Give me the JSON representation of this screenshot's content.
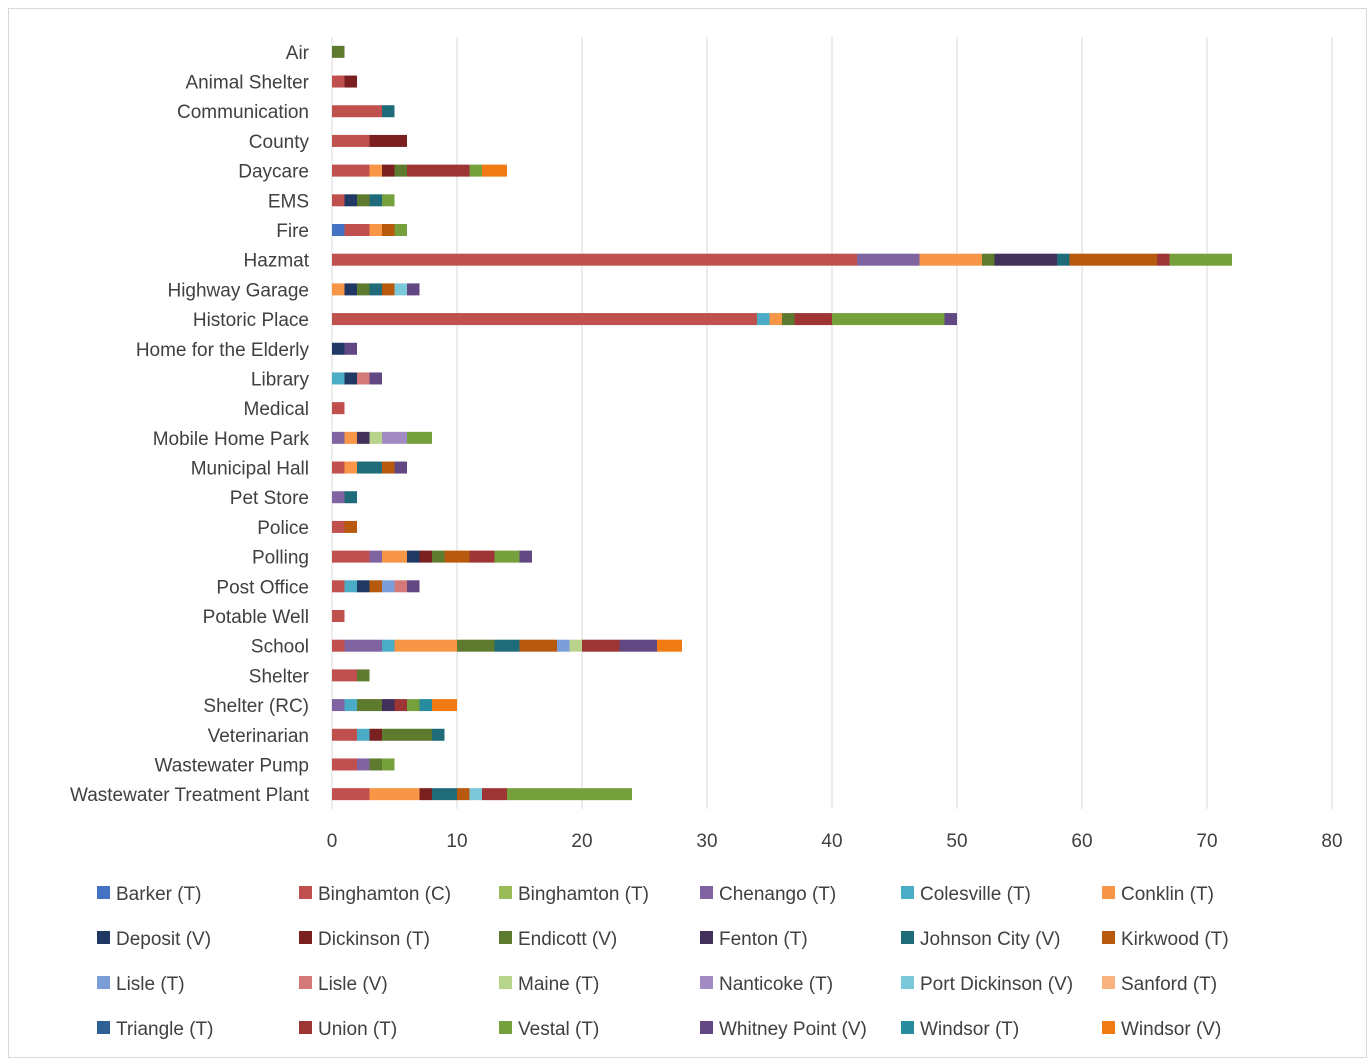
{
  "chart_data": {
    "type": "bar",
    "orientation": "horizontal",
    "stacked": true,
    "title": "",
    "xlabel": "",
    "ylabel": "",
    "xlim": [
      0,
      80
    ],
    "x_ticks": [
      "0",
      "10",
      "20",
      "30",
      "40",
      "50",
      "60",
      "70",
      "80"
    ],
    "grid": "vertical",
    "legend_position": "bottom",
    "categories": [
      "Air",
      "Animal Shelter",
      "Communication",
      "County",
      "Daycare",
      "EMS",
      "Fire",
      "Hazmat",
      "Highway Garage",
      "Historic Place",
      "Home for the Elderly",
      "Library",
      "Medical",
      "Mobile Home Park",
      "Municipal Hall",
      "Pet Store",
      "Police",
      "Polling",
      "Post Office",
      "Potable Well",
      "School",
      "Shelter",
      "Shelter (RC)",
      "Veterinarian",
      "Wastewater Pump",
      "Wastewater Treatment Plant"
    ],
    "series": [
      {
        "name": "Barker (T)",
        "color": "#4472C4",
        "values": [
          0,
          0,
          0,
          0,
          0,
          0,
          1,
          0,
          0,
          0,
          0,
          0,
          0,
          0,
          0,
          0,
          0,
          0,
          0,
          0,
          0,
          0,
          0,
          0,
          0,
          0
        ]
      },
      {
        "name": "Binghamton (C)",
        "color": "#C0504D",
        "values": [
          0,
          1,
          4,
          3,
          3,
          1,
          2,
          42,
          0,
          34,
          0,
          0,
          1,
          0,
          1,
          0,
          1,
          3,
          1,
          1,
          1,
          2,
          0,
          2,
          2,
          3
        ]
      },
      {
        "name": "Binghamton (T)",
        "color": "#9BBB59",
        "values": [
          0,
          0,
          0,
          0,
          0,
          0,
          0,
          0,
          0,
          0,
          0,
          0,
          0,
          0,
          0,
          0,
          0,
          0,
          0,
          0,
          0,
          0,
          0,
          0,
          0,
          0
        ]
      },
      {
        "name": "Chenango (T)",
        "color": "#8064A2",
        "values": [
          0,
          0,
          0,
          0,
          0,
          0,
          0,
          5,
          0,
          0,
          0,
          0,
          0,
          1,
          0,
          1,
          0,
          1,
          0,
          0,
          3,
          0,
          1,
          0,
          1,
          0
        ]
      },
      {
        "name": "Colesville (T)",
        "color": "#4BACC6",
        "values": [
          0,
          0,
          0,
          0,
          0,
          0,
          0,
          0,
          0,
          1,
          0,
          1,
          0,
          0,
          0,
          0,
          0,
          0,
          1,
          0,
          1,
          0,
          1,
          1,
          0,
          0
        ]
      },
      {
        "name": "Conklin (T)",
        "color": "#F79646",
        "values": [
          0,
          0,
          0,
          0,
          1,
          0,
          1,
          5,
          1,
          1,
          0,
          0,
          0,
          1,
          1,
          0,
          0,
          2,
          0,
          0,
          5,
          0,
          0,
          0,
          0,
          4
        ]
      },
      {
        "name": "Deposit (V)",
        "color": "#1F3864",
        "values": [
          0,
          0,
          0,
          0,
          0,
          1,
          0,
          0,
          1,
          0,
          1,
          1,
          0,
          0,
          0,
          0,
          0,
          1,
          1,
          0,
          0,
          0,
          0,
          0,
          0,
          0
        ]
      },
      {
        "name": "Dickinson (T)",
        "color": "#7B2020",
        "values": [
          0,
          1,
          0,
          3,
          1,
          0,
          0,
          0,
          0,
          0,
          0,
          0,
          0,
          0,
          0,
          0,
          0,
          1,
          0,
          0,
          0,
          0,
          0,
          1,
          0,
          1
        ]
      },
      {
        "name": "Endicott (V)",
        "color": "#5E7A2E",
        "values": [
          1,
          0,
          0,
          0,
          1,
          1,
          0,
          1,
          1,
          1,
          0,
          0,
          0,
          0,
          0,
          0,
          0,
          1,
          0,
          0,
          3,
          1,
          2,
          4,
          1,
          0
        ]
      },
      {
        "name": "Fenton (T)",
        "color": "#40305A",
        "values": [
          0,
          0,
          0,
          0,
          0,
          0,
          0,
          5,
          0,
          0,
          0,
          0,
          0,
          1,
          0,
          0,
          0,
          0,
          0,
          0,
          0,
          0,
          1,
          0,
          0,
          0
        ]
      },
      {
        "name": "Johnson City (V)",
        "color": "#1F6B7A",
        "values": [
          0,
          0,
          1,
          0,
          0,
          1,
          0,
          1,
          1,
          0,
          0,
          0,
          0,
          0,
          2,
          1,
          0,
          0,
          0,
          0,
          2,
          0,
          0,
          1,
          0,
          2
        ]
      },
      {
        "name": "Kirkwood (T)",
        "color": "#B85A0D",
        "values": [
          0,
          0,
          0,
          0,
          0,
          0,
          1,
          7,
          1,
          0,
          0,
          0,
          0,
          0,
          1,
          0,
          1,
          2,
          1,
          0,
          3,
          0,
          0,
          0,
          0,
          1
        ]
      },
      {
        "name": "Lisle (T)",
        "color": "#7C9ED8",
        "values": [
          0,
          0,
          0,
          0,
          0,
          0,
          0,
          0,
          0,
          0,
          0,
          0,
          0,
          0,
          0,
          0,
          0,
          0,
          1,
          0,
          1,
          0,
          0,
          0,
          0,
          0
        ]
      },
      {
        "name": "Lisle (V)",
        "color": "#D47878",
        "values": [
          0,
          0,
          0,
          0,
          0,
          0,
          0,
          0,
          0,
          0,
          0,
          1,
          0,
          0,
          0,
          0,
          0,
          0,
          1,
          0,
          0,
          0,
          0,
          0,
          0,
          0
        ]
      },
      {
        "name": "Maine (T)",
        "color": "#B8D48C",
        "values": [
          0,
          0,
          0,
          0,
          0,
          0,
          0,
          0,
          0,
          0,
          0,
          0,
          0,
          1,
          0,
          0,
          0,
          0,
          0,
          0,
          1,
          0,
          0,
          0,
          0,
          0
        ]
      },
      {
        "name": "Nanticoke (T)",
        "color": "#A18BC2",
        "values": [
          0,
          0,
          0,
          0,
          0,
          0,
          0,
          0,
          0,
          0,
          0,
          0,
          0,
          2,
          0,
          0,
          0,
          0,
          0,
          0,
          0,
          0,
          0,
          0,
          0,
          0
        ]
      },
      {
        "name": "Port Dickinson (V)",
        "color": "#7BC8DA",
        "values": [
          0,
          0,
          0,
          0,
          0,
          0,
          0,
          0,
          1,
          0,
          0,
          0,
          0,
          0,
          0,
          0,
          0,
          0,
          0,
          0,
          0,
          0,
          0,
          0,
          0,
          1
        ]
      },
      {
        "name": "Sanford (T)",
        "color": "#F9B37E",
        "values": [
          0,
          0,
          0,
          0,
          0,
          0,
          0,
          0,
          0,
          0,
          0,
          0,
          0,
          0,
          0,
          0,
          0,
          0,
          0,
          0,
          0,
          0,
          0,
          0,
          0,
          0
        ]
      },
      {
        "name": "Triangle (T)",
        "color": "#2E5F95",
        "values": [
          0,
          0,
          0,
          0,
          0,
          0,
          0,
          0,
          0,
          0,
          0,
          0,
          0,
          0,
          0,
          0,
          0,
          0,
          0,
          0,
          0,
          0,
          0,
          0,
          0,
          0
        ]
      },
      {
        "name": "Union (T)",
        "color": "#9E3535",
        "values": [
          0,
          0,
          0,
          0,
          5,
          0,
          0,
          1,
          0,
          3,
          0,
          0,
          0,
          0,
          0,
          0,
          0,
          2,
          0,
          0,
          3,
          0,
          1,
          0,
          0,
          2
        ]
      },
      {
        "name": "Vestal (T)",
        "color": "#76A03C",
        "values": [
          0,
          0,
          0,
          0,
          1,
          1,
          1,
          5,
          0,
          9,
          0,
          0,
          0,
          2,
          0,
          0,
          0,
          2,
          0,
          0,
          0,
          0,
          1,
          0,
          1,
          10
        ]
      },
      {
        "name": "Whitney Point (V)",
        "color": "#614882",
        "values": [
          0,
          0,
          0,
          0,
          0,
          0,
          0,
          0,
          1,
          1,
          1,
          1,
          0,
          0,
          1,
          0,
          0,
          1,
          1,
          0,
          3,
          0,
          0,
          0,
          0,
          0
        ]
      },
      {
        "name": "Windsor (T)",
        "color": "#288C9E",
        "values": [
          0,
          0,
          0,
          0,
          0,
          0,
          0,
          0,
          0,
          0,
          0,
          0,
          0,
          0,
          0,
          0,
          0,
          0,
          0,
          0,
          0,
          0,
          1,
          0,
          0,
          0
        ]
      },
      {
        "name": "Windsor (V)",
        "color": "#F07B12",
        "values": [
          0,
          0,
          0,
          0,
          2,
          0,
          0,
          0,
          0,
          0,
          0,
          0,
          0,
          0,
          0,
          0,
          0,
          0,
          0,
          0,
          2,
          0,
          2,
          0,
          0,
          0
        ]
      }
    ]
  }
}
